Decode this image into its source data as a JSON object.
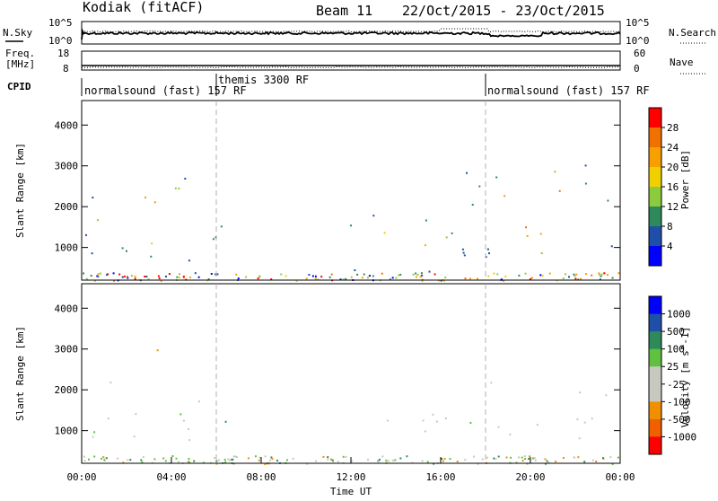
{
  "header": {
    "station": "Kodiak (fitACF)",
    "beam": "Beam 11",
    "date_range": "22/Oct/2015 - 23/Oct/2015"
  },
  "noise_panel": {
    "left_label": "N.Sky",
    "right_label": "N.Search",
    "left_ticks": [
      "10^5",
      "10^0"
    ],
    "right_ticks": [
      "10^5",
      "10^0"
    ]
  },
  "freq_panel": {
    "left_label_line1": "Freq.",
    "left_label_line2": "[MHz]",
    "right_label": "Nave",
    "left_ticks": [
      "18",
      "8"
    ],
    "right_ticks": [
      "60",
      "0"
    ]
  },
  "cpid_panel": {
    "label": "CPID",
    "segments": [
      {
        "start_hour": 0,
        "label": "normalsound (fast) 157 RF"
      },
      {
        "start_hour": 6.0,
        "label": "themis 3300 RF"
      },
      {
        "start_hour": 18.0,
        "label": "normalsound (fast) 157 RF"
      }
    ]
  },
  "colors": {
    "power_scale": [
      "#0000ff",
      "#1f4fa8",
      "#2e8a5a",
      "#8ccc3c",
      "#f0d000",
      "#f7a000",
      "#f07000",
      "#ff0000"
    ],
    "velocity_scale": [
      "#ff0000",
      "#f06000",
      "#f09000",
      "#c8c8c0",
      "#c8c8c0",
      "#60c040",
      "#2e8a5a",
      "#1f4fa8",
      "#0000ff"
    ],
    "marker_line": "#b0b0b0"
  },
  "chart_data": [
    {
      "type": "heatmap",
      "name": "power",
      "ylabel": "Slant Range [km]",
      "y_ticks": [
        1000,
        2000,
        3000,
        4000
      ],
      "ylim": [
        200,
        4600
      ],
      "xlim": [
        0,
        24
      ],
      "colorbar": {
        "label": "Power [dB]",
        "ticks": [
          "28",
          "24",
          "20",
          "16",
          "12",
          "8",
          "4"
        ],
        "range": [
          0,
          30
        ]
      },
      "echo_regions": [
        {
          "x": [
            0,
            6.5
          ],
          "y": [
            700,
            2800
          ],
          "peak_power_db": 28
        },
        {
          "x": [
            3.4,
            4.6
          ],
          "y": [
            2200,
            3500
          ],
          "peak_power_db": 24
        },
        {
          "x": [
            11.0,
            17.5
          ],
          "y": [
            400,
            1900
          ],
          "peak_power_db": 24
        },
        {
          "x": [
            16.8,
            24
          ],
          "y": [
            700,
            3100
          ],
          "peak_power_db": 28
        }
      ]
    },
    {
      "type": "heatmap",
      "name": "velocity",
      "ylabel": "Slant Range [km]",
      "xlabel": "Time UT",
      "x_tick_labels": [
        "00:00",
        "04:00",
        "08:00",
        "12:00",
        "16:00",
        "20:00",
        "00:00"
      ],
      "x_ticks_hours": [
        0,
        4,
        8,
        12,
        16,
        20,
        24
      ],
      "y_ticks": [
        1000,
        2000,
        3000,
        4000
      ],
      "ylim": [
        200,
        4600
      ],
      "xlim": [
        0,
        24
      ],
      "colorbar": {
        "label": "Velocity [m s^-1]",
        "ticks": [
          "1000",
          "500",
          "100",
          "25",
          "-25",
          "-100",
          "-500",
          "-1000"
        ]
      },
      "echo_regions": [
        {
          "x": [
            0,
            6.5
          ],
          "y": [
            700,
            2200
          ],
          "velocity_ms": 0
        },
        {
          "x": [
            3.3,
            4.6
          ],
          "y": [
            2500,
            3200
          ],
          "velocity_ms": -300
        },
        {
          "x": [
            5.7,
            6.5
          ],
          "y": [
            1000,
            1600
          ],
          "velocity_ms": 300
        },
        {
          "x": [
            13.0,
            17.5
          ],
          "y": [
            500,
            1600
          ],
          "velocity_ms": 0
        },
        {
          "x": [
            15.8,
            16.8
          ],
          "y": [
            1200,
            1500
          ],
          "velocity_ms": -500
        },
        {
          "x": [
            16.8,
            24
          ],
          "y": [
            800,
            2200
          ],
          "velocity_ms": 0
        }
      ]
    }
  ]
}
